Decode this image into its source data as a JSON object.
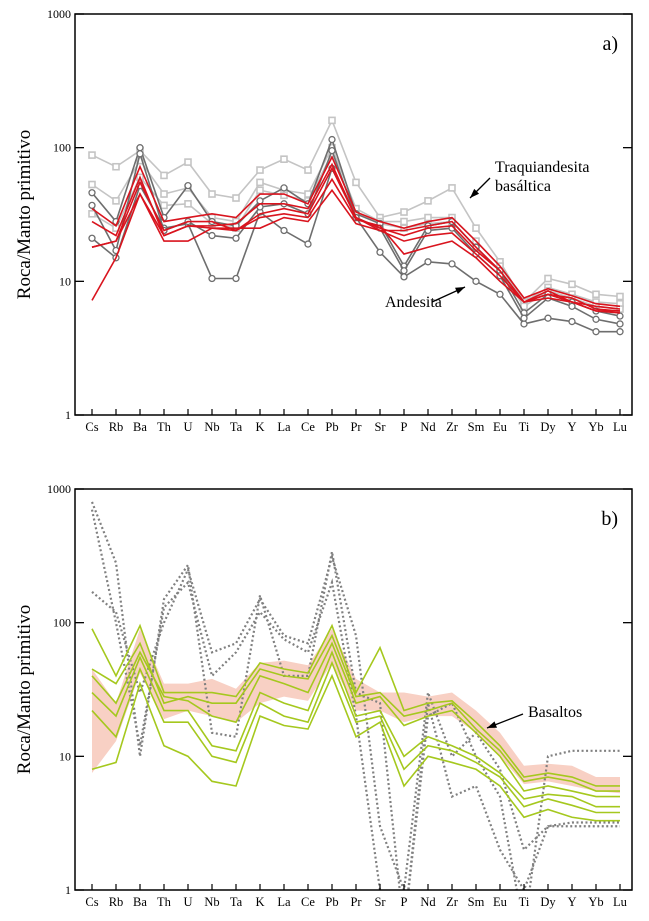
{
  "chart_data": [
    {
      "type": "line",
      "panel_label": "a)",
      "y_label": "Roca/Manto primitivo",
      "log_scale": true,
      "ylim": [
        1,
        1000
      ],
      "yticks": [
        1,
        10,
        100,
        1000
      ],
      "categories": [
        "Cs",
        "Rb",
        "Ba",
        "Th",
        "U",
        "Nb",
        "Ta",
        "K",
        "La",
        "Ce",
        "Pb",
        "Pr",
        "Sr",
        "P",
        "Nd",
        "Zr",
        "Sm",
        "Eu",
        "Ti",
        "Dy",
        "Y",
        "Yb",
        "Lu"
      ],
      "annotations": [
        "Traquiandesita\nbasáltica",
        "Andesita"
      ],
      "series": [
        {
          "color": "#c4c4c4",
          "marker": "square",
          "values": [
            88,
            72,
            95,
            62,
            78,
            45,
            42,
            68,
            82,
            68,
            160,
            55,
            30,
            33,
            40,
            50,
            25,
            14,
            7,
            10.5,
            9.5,
            8,
            7.7
          ]
        },
        {
          "color": "#c4c4c4",
          "marker": "square",
          "values": [
            53,
            40,
            80,
            45,
            50,
            30,
            28,
            55,
            48,
            45,
            100,
            35,
            28,
            28,
            30,
            30,
            20,
            13,
            7,
            9,
            8,
            7,
            6.8
          ]
        },
        {
          "color": "#c4c4c4",
          "marker": "square",
          "values": [
            32,
            25,
            60,
            37,
            38,
            27,
            25,
            48,
            44,
            40,
            90,
            32,
            27,
            25,
            27,
            28,
            18,
            12,
            6.5,
            8.5,
            7.5,
            6.5,
            6.2
          ]
        },
        {
          "color": "#6e6e6e",
          "marker": "circle",
          "values": [
            46,
            28,
            100,
            30,
            52,
            28,
            26,
            40,
            50,
            38,
            115,
            32,
            27,
            13,
            26,
            28,
            18,
            12,
            5.8,
            8,
            7,
            6,
            5.5
          ]
        },
        {
          "color": "#6e6e6e",
          "marker": "circle",
          "values": [
            21,
            15,
            52,
            25,
            27,
            10.5,
            10.5,
            33,
            24,
            19,
            70,
            30,
            16.5,
            10.8,
            14,
            13.5,
            10,
            8,
            4.8,
            5.3,
            5,
            4.2,
            4.2
          ]
        },
        {
          "color": "#6e6e6e",
          "marker": "circle",
          "values": [
            37,
            17,
            90,
            24,
            28,
            22,
            21,
            36,
            38,
            32,
            95,
            30,
            25,
            12,
            24,
            25,
            16,
            11,
            5.3,
            7.5,
            6.5,
            5.2,
            4.8
          ]
        },
        {
          "color": "#d9141e",
          "values": [
            7.2,
            15,
            45,
            20,
            20,
            25,
            25,
            25,
            30,
            28,
            48,
            27,
            24,
            20,
            22,
            23,
            16,
            11,
            7,
            8,
            7,
            6,
            6
          ]
        },
        {
          "color": "#d9141e",
          "values": [
            18,
            20,
            55,
            24,
            28,
            28,
            24,
            32,
            35,
            32,
            70,
            30,
            25,
            22,
            25,
            26,
            17,
            12,
            7,
            8.5,
            7,
            6.5,
            6.2
          ]
        },
        {
          "color": "#d9141e",
          "values": [
            35,
            26,
            72,
            28,
            30,
            32,
            30,
            45,
            45,
            38,
            85,
            33,
            28,
            25,
            28,
            30,
            20,
            13,
            7.5,
            8.8,
            7.8,
            6.8,
            6.5
          ]
        },
        {
          "color": "#d9141e",
          "values": [
            28,
            22,
            60,
            22,
            26,
            26,
            27,
            38,
            38,
            35,
            75,
            30,
            24,
            24,
            26,
            28,
            18,
            12,
            7,
            8,
            7.5,
            6.2,
            6
          ]
        },
        {
          "color": "#d9141e",
          "values": [
            18,
            20,
            45,
            22,
            26,
            25,
            24,
            30,
            32,
            30,
            58,
            29,
            26,
            16,
            18,
            20,
            15,
            10,
            7,
            7.5,
            7,
            6,
            5.8
          ]
        }
      ]
    },
    {
      "type": "line",
      "panel_label": "b)",
      "y_label": "Roca/Manto primitivo",
      "log_scale": true,
      "ylim": [
        1,
        1000
      ],
      "yticks": [
        1,
        10,
        100,
        1000
      ],
      "categories": [
        "Cs",
        "Rb",
        "Ba",
        "Th",
        "U",
        "Nb",
        "Ta",
        "K",
        "La",
        "Ce",
        "Pb",
        "Pr",
        "Sr",
        "P",
        "Nd",
        "Zr",
        "Sm",
        "Eu",
        "Ti",
        "Dy",
        "Y",
        "Yb",
        "Lu"
      ],
      "annotations": [
        "Basaltos"
      ],
      "band": {
        "color": "#f8d0c4",
        "high": [
          45,
          25,
          90,
          35,
          35,
          38,
          32,
          50,
          52,
          48,
          90,
          38,
          30,
          30,
          28,
          30,
          22,
          15,
          8.5,
          8.8,
          8.5,
          7,
          7
        ],
        "low": [
          7.5,
          13,
          42,
          19,
          22,
          20,
          18,
          25,
          28,
          26,
          50,
          22,
          22,
          18,
          20,
          20,
          15,
          10,
          6.2,
          6.5,
          6,
          5.5,
          5.3
        ]
      },
      "series": [
        {
          "color": "#808080",
          "dashed": true,
          "values": [
            800,
            280,
            10,
            150,
            270,
            15,
            14,
            160,
            40,
            40,
            340,
            30,
            25,
            0.5,
            20,
            25,
            10,
            5,
            0.5,
            10,
            11,
            11,
            11
          ]
        },
        {
          "color": "#808080",
          "dashed": true,
          "values": [
            170,
            120,
            30,
            100,
            250,
            60,
            70,
            150,
            80,
            70,
            310,
            80,
            3,
            1,
            30,
            10,
            15,
            8,
            2,
            3,
            3,
            3,
            3
          ]
        },
        {
          "color": "#808080",
          "dashed": true,
          "values": [
            700,
            100,
            12,
            130,
            200,
            40,
            60,
            120,
            75,
            60,
            200,
            20,
            1,
            0.5,
            25,
            5,
            6,
            2,
            1,
            3,
            3.2,
            3.2,
            3.2
          ]
        },
        {
          "color": "#a5c81e",
          "values": [
            90,
            40,
            95,
            30,
            30,
            30,
            28,
            50,
            45,
            42,
            95,
            30,
            65,
            22,
            25,
            26,
            18,
            12,
            7,
            7.5,
            7,
            6,
            6
          ]
        },
        {
          "color": "#a5c81e",
          "values": [
            45,
            35,
            70,
            25,
            28,
            25,
            25,
            45,
            40,
            38,
            80,
            28,
            30,
            20,
            22,
            25,
            16,
            11,
            6.5,
            7,
            6.5,
            5.5,
            5.5
          ]
        },
        {
          "color": "#a5c81e",
          "values": [
            30,
            20,
            55,
            22,
            22,
            12,
            11,
            30,
            25,
            22,
            60,
            20,
            22,
            10,
            14,
            12,
            10,
            7.5,
            4.8,
            5.2,
            5,
            4.2,
            4.2
          ]
        },
        {
          "color": "#a5c81e",
          "values": [
            22,
            14,
            45,
            18,
            18,
            10,
            9,
            25,
            20,
            18,
            50,
            18,
            20,
            8,
            12,
            11,
            9,
            7,
            4.2,
            4.8,
            4.3,
            3.8,
            3.8
          ]
        },
        {
          "color": "#a5c81e",
          "values": [
            8,
            9,
            35,
            12,
            10,
            6.5,
            6,
            20,
            17,
            16,
            40,
            14,
            18,
            6,
            10,
            9,
            8,
            6,
            3.5,
            4,
            3.5,
            3.3,
            3.3
          ]
        },
        {
          "color": "#a5c81e",
          "values": [
            40,
            25,
            60,
            28,
            26,
            20,
            18,
            40,
            35,
            30,
            70,
            25,
            28,
            17,
            20,
            22,
            15,
            10,
            5.5,
            6,
            5.5,
            5,
            5
          ]
        }
      ]
    }
  ]
}
